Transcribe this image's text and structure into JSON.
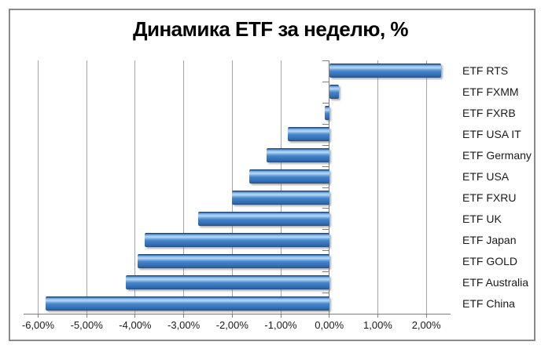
{
  "window": {
    "background": "#ffffff",
    "frame_border_color": "#8a8a8a"
  },
  "chart_data": {
    "type": "bar",
    "orientation": "horizontal",
    "title": "Динамика ETF за неделю, %",
    "categories": [
      "ETF RTS",
      "ETF FXMM",
      "ETF FXRB",
      "ETF USA IT",
      "ETF Germany",
      "ETF USA",
      "ETF FXRU",
      "ETF UK",
      "ETF Japan",
      "ETF GOLD",
      "ETF Australia",
      "ETF China"
    ],
    "values": [
      2.3,
      0.2,
      -0.1,
      -0.85,
      -1.3,
      -1.65,
      -2.0,
      -2.7,
      -3.8,
      -3.95,
      -4.2,
      -5.85
    ],
    "value_unit": "%",
    "xlim": [
      -6.3,
      2.5
    ],
    "x_ticks": [
      {
        "value": -6,
        "label": "-6,00%"
      },
      {
        "value": -5,
        "label": "-5,00%"
      },
      {
        "value": -4,
        "label": "-4,00%"
      },
      {
        "value": -3,
        "label": "-3,00%"
      },
      {
        "value": -2,
        "label": "-2,00%"
      },
      {
        "value": -1,
        "label": "-1,00%"
      },
      {
        "value": 0,
        "label": "0,00%"
      },
      {
        "value": 1,
        "label": "1,00%"
      },
      {
        "value": 2,
        "label": "2,00%"
      }
    ],
    "grid": true,
    "legend": false,
    "category_labels_position": "right",
    "bar_color": "#3f7ec1",
    "bar_highlight_color": "#b5d8f6",
    "gridline_color": "#a6a6a6",
    "axis_color": "#7f7f7f",
    "label_color": "#1a1a1a",
    "title_color": "#000000"
  }
}
